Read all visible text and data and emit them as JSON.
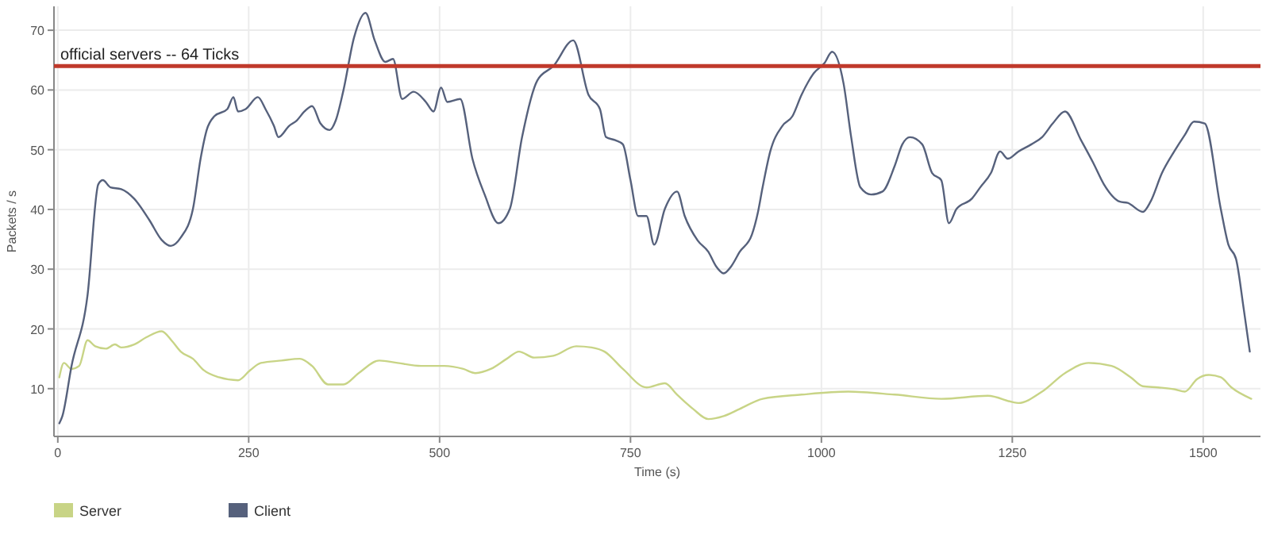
{
  "chart_data": {
    "type": "line",
    "xlabel": "Time (s)",
    "ylabel": "Packets / s",
    "xlim": [
      -5,
      1575
    ],
    "ylim": [
      2,
      74
    ],
    "xticks": [
      0,
      250,
      500,
      750,
      1000,
      1250,
      1500
    ],
    "yticks": [
      10,
      20,
      30,
      40,
      50,
      60,
      70
    ],
    "grid": true,
    "legend": "bottom",
    "line_style": "solid",
    "marker": "none",
    "ref_lines": [
      {
        "axis": "y",
        "value": 64,
        "label": "official servers -- 64 Ticks",
        "color": "#c0392b"
      }
    ],
    "series": [
      {
        "name": "Server",
        "color": "#c8d486",
        "x": [
          2,
          8,
          18,
          28,
          39,
          49,
          63,
          75,
          83,
          100,
          116,
          136,
          150,
          161,
          177,
          191,
          211,
          236,
          252,
          266,
          293,
          317,
          333,
          354,
          374,
          394,
          421,
          445,
          476,
          506,
          531,
          547,
          567,
          588,
          604,
          624,
          649,
          679,
          699,
          716,
          740,
          771,
          795,
          811,
          832,
          852,
          872,
          893,
          923,
          974,
          1035,
          1096,
          1157,
          1218,
          1258,
          1289,
          1319,
          1350,
          1380,
          1405,
          1421,
          1441,
          1462,
          1476,
          1492,
          1507,
          1523,
          1537,
          1563
        ],
        "values": [
          11.9,
          14.3,
          13.3,
          13.8,
          18.1,
          17.1,
          16.7,
          17.4,
          16.9,
          17.4,
          18.6,
          19.6,
          17.9,
          16.2,
          15,
          13.1,
          11.9,
          11.4,
          13.1,
          14.3,
          14.7,
          15,
          13.8,
          10.7,
          10.7,
          12.6,
          14.7,
          14.3,
          13.8,
          13.8,
          13.3,
          12.6,
          13.3,
          15,
          16.2,
          15.2,
          15.5,
          17.1,
          16.9,
          16.2,
          13.3,
          10.2,
          10.9,
          9,
          6.6,
          4.9,
          5.4,
          6.6,
          8.3,
          9,
          9.5,
          9,
          8.3,
          8.8,
          7.6,
          9.5,
          12.6,
          14.3,
          13.8,
          11.9,
          10.4,
          10.2,
          9.9,
          9.5,
          11.6,
          12.3,
          11.9,
          10.2,
          8.3
        ]
      },
      {
        "name": "Client",
        "color": "#56617c",
        "x": [
          2,
          6,
          18,
          39,
          53,
          59,
          69,
          83,
          100,
          120,
          136,
          148,
          161,
          177,
          187,
          195,
          205,
          222,
          230,
          236,
          246,
          262,
          272,
          283,
          289,
          303,
          313,
          323,
          333,
          344,
          356,
          364,
          374,
          388,
          403,
          415,
          429,
          439,
          451,
          466,
          482,
          492,
          502,
          510,
          527,
          543,
          559,
          577,
          592,
          608,
          628,
          649,
          675,
          695,
          710,
          718,
          730,
          740,
          750,
          760,
          771,
          781,
          795,
          811,
          821,
          838,
          852,
          862,
          872,
          882,
          893,
          909,
          917,
          923,
          933,
          949,
          962,
          974,
          990,
          1004,
          1014,
          1029,
          1039,
          1051,
          1065,
          1080,
          1096,
          1106,
          1116,
          1132,
          1145,
          1157,
          1167,
          1177,
          1197,
          1208,
          1222,
          1234,
          1244,
          1258,
          1275,
          1289,
          1303,
          1319,
          1340,
          1356,
          1370,
          1391,
          1401,
          1421,
          1431,
          1446,
          1462,
          1476,
          1488,
          1502,
          1523,
          1533,
          1543,
          1553,
          1561
        ],
        "values": [
          4.2,
          5.4,
          13.8,
          25.7,
          44.2,
          44.9,
          43.7,
          43.4,
          41.8,
          38.2,
          34.9,
          33.9,
          35.3,
          40.1,
          48.5,
          53.3,
          55.6,
          56.8,
          58.8,
          56.4,
          56.8,
          58.8,
          56.8,
          54,
          52.1,
          54,
          54.9,
          56.4,
          57.3,
          54.4,
          53.3,
          54.9,
          59.9,
          68.8,
          72.9,
          68.3,
          64.7,
          65.2,
          58.5,
          59.7,
          58,
          56.4,
          60.4,
          58,
          58.5,
          48.5,
          42.5,
          37.7,
          40.1,
          52.1,
          61.6,
          64,
          68.3,
          59.2,
          56.8,
          52.1,
          51.6,
          50.9,
          44.9,
          38.9,
          38.9,
          34.1,
          40.1,
          43,
          38.9,
          34.8,
          32.9,
          30.5,
          29.3,
          30.5,
          32.9,
          35.8,
          39.6,
          43.7,
          49.7,
          54,
          55.6,
          59.2,
          62.8,
          64.5,
          66.4,
          61.1,
          52.1,
          43.7,
          42.5,
          43,
          47.3,
          50.9,
          52.1,
          50.9,
          46.1,
          44.9,
          37.7,
          40.1,
          41.8,
          43.7,
          46.1,
          49.7,
          48.5,
          49.7,
          50.9,
          52.1,
          54.4,
          56.4,
          51.6,
          47.8,
          44.2,
          41.3,
          41.1,
          39.6,
          41.3,
          46.1,
          49.7,
          52.5,
          54.7,
          54.4,
          40.1,
          34.1,
          31.7,
          23.4,
          16.2
        ]
      }
    ]
  }
}
